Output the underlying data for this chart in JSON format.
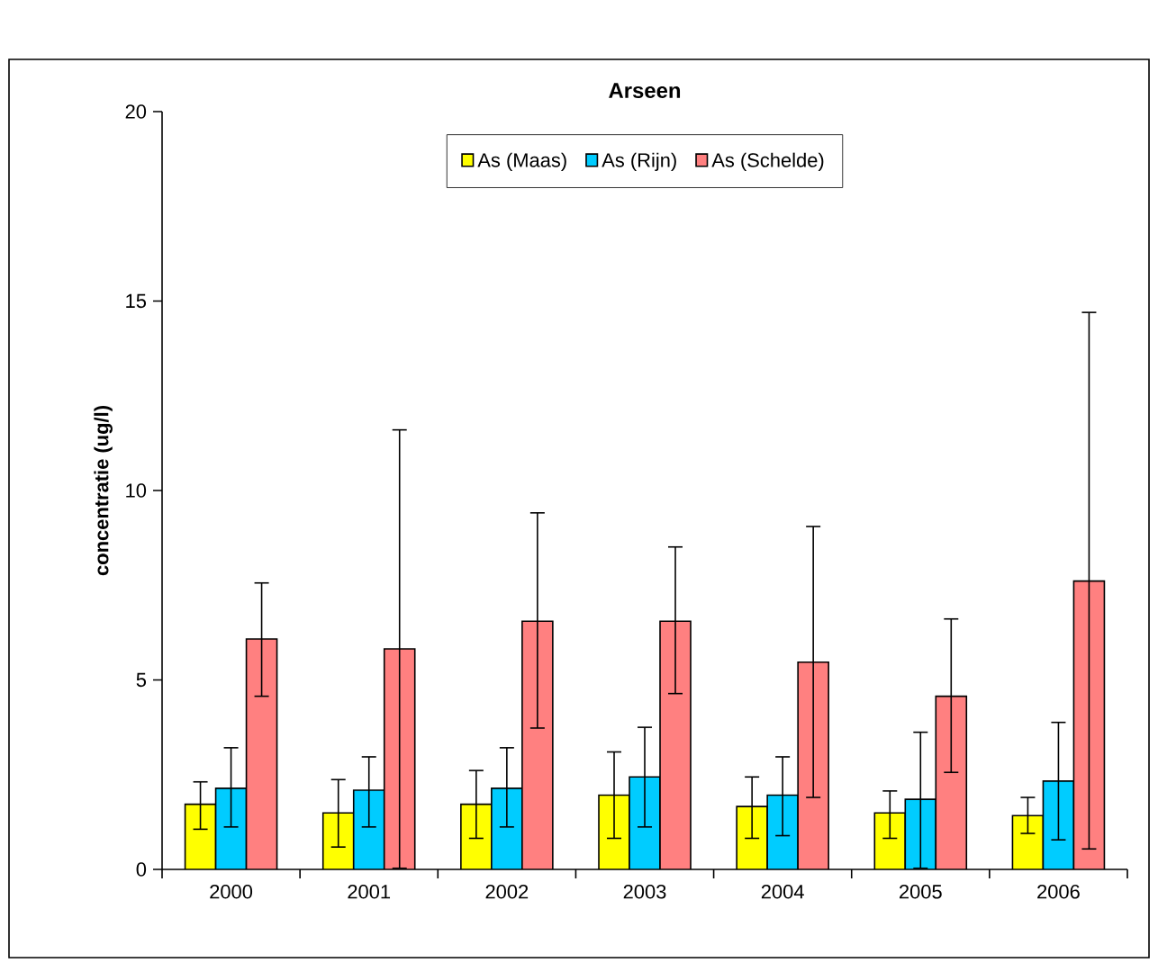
{
  "chart_data": {
    "type": "bar",
    "title": "Arseen",
    "ylabel": "concentratie (ug/l)",
    "categories": [
      "2000",
      "2001",
      "2002",
      "2003",
      "2004",
      "2005",
      "2006"
    ],
    "series": [
      {
        "name": "As (Maas)",
        "color": "#ffff00",
        "values": [
          1.72,
          1.49,
          1.72,
          1.96,
          1.66,
          1.49,
          1.42
        ],
        "errors": [
          [
            1.06,
            2.31
          ],
          [
            0.59,
            2.37
          ],
          [
            0.82,
            2.61
          ],
          [
            0.82,
            3.1
          ],
          [
            0.82,
            2.44
          ],
          [
            0.82,
            2.07
          ],
          [
            0.95,
            1.9
          ]
        ]
      },
      {
        "name": "As (Rijn)",
        "color": "#00ccff",
        "values": [
          2.14,
          2.09,
          2.14,
          2.44,
          1.96,
          1.85,
          2.33
        ],
        "errors": [
          [
            1.12,
            3.21
          ],
          [
            1.12,
            2.97
          ],
          [
            1.12,
            3.21
          ],
          [
            1.12,
            3.75
          ],
          [
            0.89,
            2.97
          ],
          [
            0.03,
            3.62
          ],
          [
            0.78,
            3.88
          ]
        ]
      },
      {
        "name": "As (Schelde)",
        "color": "#ff8080",
        "values": [
          6.08,
          5.82,
          6.55,
          6.55,
          5.47,
          4.57,
          7.61
        ],
        "errors": [
          [
            4.57,
            7.56
          ],
          [
            0.03,
            11.6
          ],
          [
            3.73,
            9.41
          ],
          [
            4.64,
            8.51
          ],
          [
            1.9,
            9.05
          ],
          [
            2.56,
            6.61
          ],
          [
            0.54,
            14.7
          ]
        ]
      }
    ],
    "ylim": [
      0,
      20
    ],
    "yticks": [
      0,
      5,
      10,
      15,
      20
    ],
    "grid": false,
    "legend": "top"
  }
}
